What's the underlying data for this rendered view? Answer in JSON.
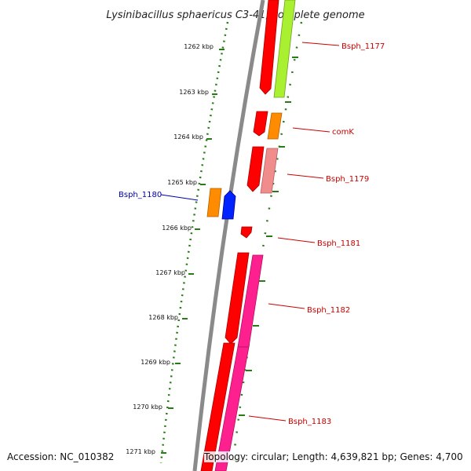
{
  "title": "Lysinibacillus sphaericus C3-41, complete genome",
  "ticks": [
    "1262 kbp",
    "1263 kbp",
    "1264 kbp",
    "1265 kbp",
    "1266 kbp",
    "1267 kbp",
    "1268 kbp",
    "1269 kbp",
    "1270 kbp",
    "1271 kbp"
  ],
  "genes": [
    {
      "label": "Bsph_1177",
      "color": "#cc0000"
    },
    {
      "label": "comK",
      "color": "#cc0000"
    },
    {
      "label": "Bsph_1179",
      "color": "#cc0000"
    },
    {
      "label": "Bsph_1180",
      "color": "#0000aa"
    },
    {
      "label": "Bsph_1181",
      "color": "#cc0000"
    },
    {
      "label": "Bsph_1182",
      "color": "#cc0000"
    },
    {
      "label": "Bsph_1183",
      "color": "#cc0000"
    }
  ],
  "colors": {
    "backbone": "#8a8a8a",
    "ticks": "#2a7a1a",
    "cds": "#ff0000",
    "cds_reverse": "#0022ff",
    "cog_orange": "#ff8c00",
    "cog_lime": "#a8f030",
    "cog_pink": "#f08c8c",
    "cog_magenta": "#ff2090"
  },
  "footer": {
    "accession": "Accession: NC_010382",
    "topology": "Topology: circular; Length: 4,639,821 bp; Genes: 4,700"
  }
}
